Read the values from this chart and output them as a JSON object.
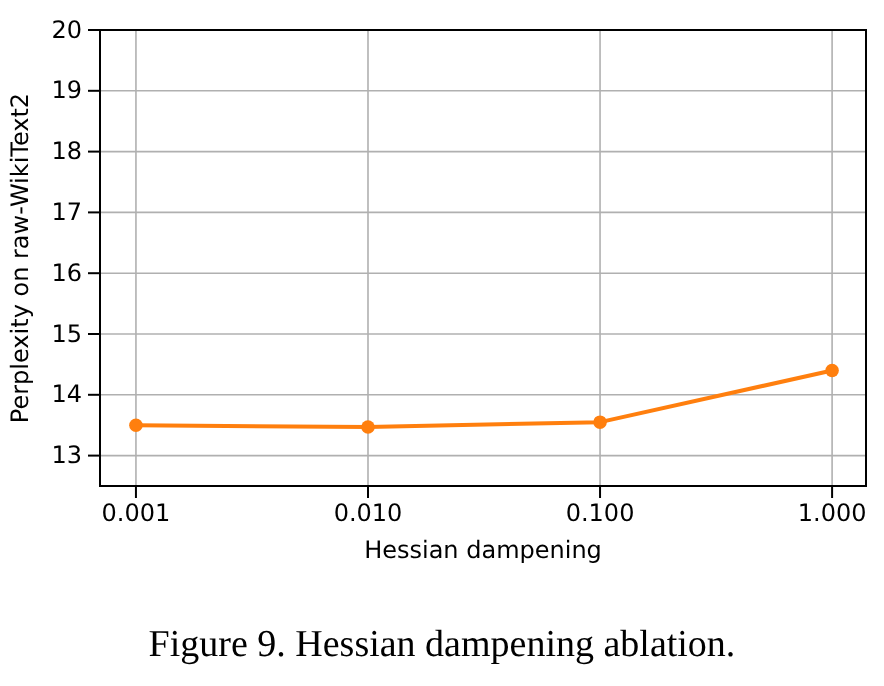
{
  "chart_data": {
    "type": "line",
    "x": [
      0.001,
      0.01,
      0.1,
      1
    ],
    "series": [
      {
        "color": "#ff7f0e",
        "values": [
          13.5,
          13.47,
          13.55,
          14.4
        ]
      }
    ],
    "xlabel": "Hessian dampening",
    "ylabel": "Perplexity on raw-WikiText2",
    "log": "x",
    "xlim": [
      0.0007,
      1.4
    ],
    "ylim": [
      12.5,
      20
    ],
    "xticks": [
      {
        "value": 0.001,
        "label": "0.001"
      },
      {
        "value": 0.01,
        "label": "0.010"
      },
      {
        "value": 0.1,
        "label": "0.100"
      },
      {
        "value": 1,
        "label": "1.000"
      }
    ],
    "yticks": [
      13,
      14,
      15,
      16,
      17,
      18,
      19,
      20
    ],
    "grid": true,
    "marker": "circle",
    "line_style": "solid",
    "annotations": [
      "Figure 9. Hessian dampening ablation."
    ]
  }
}
